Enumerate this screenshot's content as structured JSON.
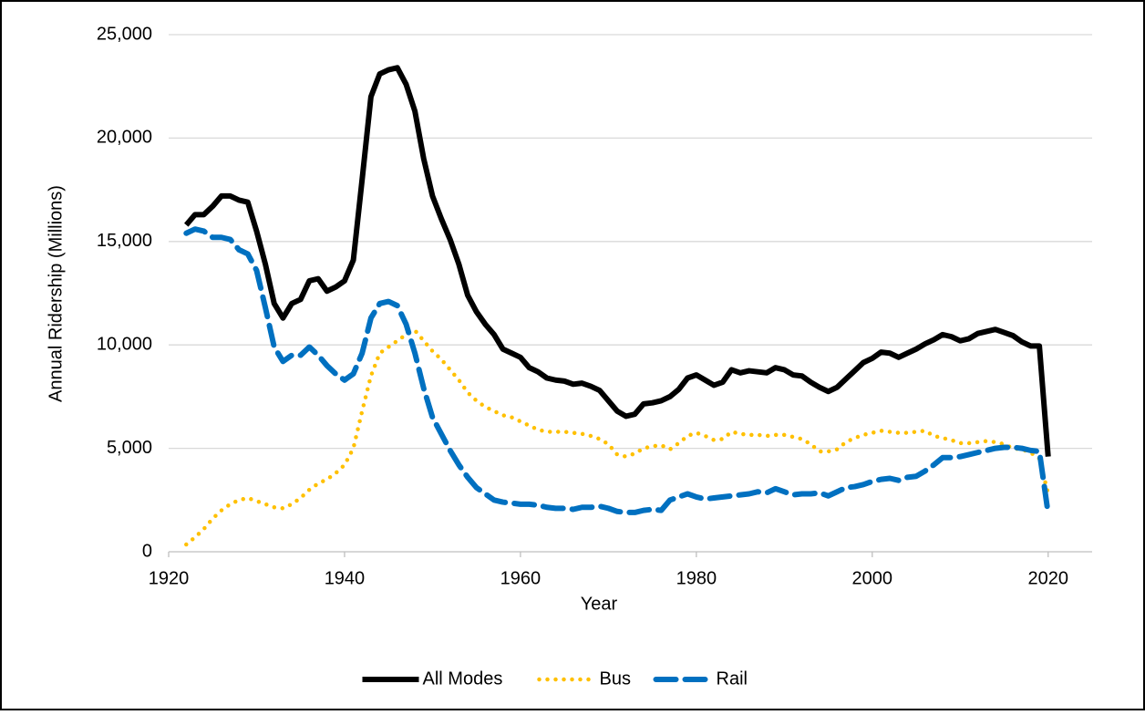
{
  "chart_data": {
    "type": "line",
    "xlabel": "Year",
    "ylabel": "Annual Ridership (Millions)",
    "xlim": [
      1920,
      2025
    ],
    "xticks": [
      1920,
      1940,
      1960,
      1980,
      2000,
      2020
    ],
    "ylim": [
      0,
      25000
    ],
    "yticks": [
      0,
      {
        "value": 5000,
        "label": "5,000"
      },
      {
        "value": 10000,
        "label": "10,000"
      },
      {
        "value": 15000,
        "label": "15,000"
      },
      {
        "value": 20000,
        "label": "20,000"
      },
      {
        "value": 25000,
        "label": "25,000"
      }
    ],
    "grid": true,
    "legend": "bottom",
    "x": [
      1922,
      1923,
      1924,
      1925,
      1926,
      1927,
      1928,
      1929,
      1930,
      1931,
      1932,
      1933,
      1934,
      1935,
      1936,
      1937,
      1938,
      1939,
      1940,
      1941,
      1942,
      1943,
      1944,
      1945,
      1946,
      1947,
      1948,
      1949,
      1950,
      1951,
      1952,
      1953,
      1954,
      1955,
      1956,
      1957,
      1958,
      1959,
      1960,
      1961,
      1962,
      1963,
      1964,
      1965,
      1966,
      1967,
      1968,
      1969,
      1970,
      1971,
      1972,
      1973,
      1974,
      1975,
      1976,
      1977,
      1978,
      1979,
      1980,
      1981,
      1982,
      1983,
      1984,
      1985,
      1986,
      1987,
      1988,
      1989,
      1990,
      1991,
      1992,
      1993,
      1994,
      1995,
      1996,
      1997,
      1998,
      1999,
      2000,
      2001,
      2002,
      2003,
      2004,
      2005,
      2006,
      2007,
      2008,
      2009,
      2010,
      2011,
      2012,
      2013,
      2014,
      2015,
      2016,
      2017,
      2018,
      2019,
      2020
    ],
    "series": [
      {
        "name": "All Modes",
        "color": "#000000",
        "style": "solid",
        "values": [
          15800,
          16300,
          16300,
          16700,
          17200,
          17200,
          17000,
          16900,
          15500,
          13900,
          12000,
          11300,
          12000,
          12200,
          13100,
          13200,
          12600,
          12800,
          13100,
          14100,
          18000,
          22000,
          23100,
          23300,
          23400,
          22600,
          21300,
          19000,
          17200,
          16100,
          15100,
          13900,
          12400,
          11600,
          11000,
          10500,
          9800,
          9600,
          9400,
          8900,
          8700,
          8400,
          8300,
          8250,
          8100,
          8150,
          8000,
          7800,
          7300,
          6800,
          6550,
          6650,
          7150,
          7200,
          7300,
          7500,
          7850,
          8400,
          8550,
          8300,
          8050,
          8200,
          8800,
          8650,
          8750,
          8700,
          8650,
          8900,
          8800,
          8550,
          8500,
          8200,
          7950,
          7750,
          7950,
          8350,
          8750,
          9150,
          9350,
          9650,
          9600,
          9400,
          9600,
          9800,
          10050,
          10250,
          10500,
          10400,
          10200,
          10300,
          10550,
          10650,
          10750,
          10600,
          10450,
          10150,
          9950,
          9950,
          4600
        ]
      },
      {
        "name": "Bus",
        "color": "#ffc000",
        "style": "dotted",
        "values": [
          350,
          700,
          1100,
          1600,
          2000,
          2300,
          2500,
          2600,
          2450,
          2300,
          2150,
          2100,
          2300,
          2600,
          3000,
          3300,
          3500,
          3800,
          4200,
          5000,
          6800,
          8500,
          9600,
          9900,
          10200,
          10500,
          10700,
          10200,
          9700,
          9300,
          8800,
          8300,
          7700,
          7300,
          7000,
          6800,
          6600,
          6500,
          6300,
          6100,
          5900,
          5800,
          5800,
          5800,
          5750,
          5700,
          5600,
          5450,
          5200,
          4700,
          4600,
          4750,
          5000,
          5100,
          5150,
          4950,
          5250,
          5600,
          5750,
          5600,
          5400,
          5450,
          5800,
          5700,
          5650,
          5650,
          5600,
          5650,
          5650,
          5550,
          5450,
          5200,
          4850,
          4850,
          4950,
          5300,
          5500,
          5650,
          5750,
          5850,
          5800,
          5750,
          5750,
          5800,
          5850,
          5600,
          5500,
          5400,
          5250,
          5250,
          5300,
          5350,
          5300,
          5200,
          5000,
          4950,
          4800,
          4500,
          2800
        ]
      },
      {
        "name": "Rail",
        "color": "#0070c0",
        "style": "dashed",
        "values": [
          15400,
          15600,
          15500,
          15200,
          15200,
          15100,
          14600,
          14400,
          13600,
          11800,
          9900,
          9200,
          9500,
          9500,
          9900,
          9500,
          9000,
          8600,
          8300,
          8600,
          9600,
          11300,
          12000,
          12100,
          11900,
          11000,
          9600,
          7900,
          6500,
          5700,
          4900,
          4200,
          3600,
          3100,
          2800,
          2500,
          2400,
          2350,
          2300,
          2300,
          2250,
          2150,
          2100,
          2100,
          2050,
          2150,
          2150,
          2200,
          2100,
          1950,
          1900,
          1900,
          2000,
          2050,
          2000,
          2500,
          2650,
          2800,
          2650,
          2550,
          2600,
          2650,
          2700,
          2750,
          2800,
          2900,
          2850,
          3050,
          2900,
          2750,
          2800,
          2800,
          2850,
          2700,
          2900,
          3100,
          3150,
          3250,
          3400,
          3500,
          3550,
          3450,
          3600,
          3650,
          3900,
          4200,
          4550,
          4550,
          4600,
          4700,
          4800,
          4900,
          5000,
          5050,
          5050,
          5000,
          4900,
          4850,
          1850
        ]
      }
    ]
  }
}
